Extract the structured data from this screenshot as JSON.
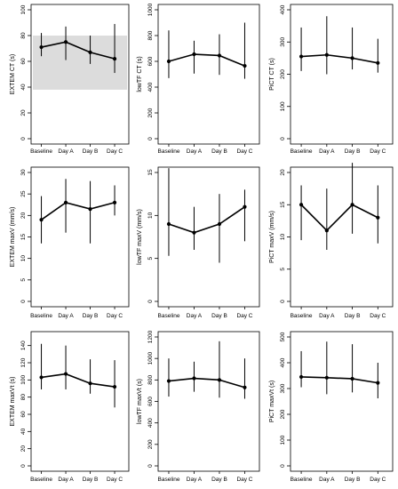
{
  "figure": {
    "categories": [
      "Baseline",
      "Day A",
      "Day B",
      "Day C"
    ]
  },
  "chart_data": [
    {
      "type": "line",
      "ylabel": "EXTEM CT (s)",
      "ylim": [
        0,
        100
      ],
      "yticks": [
        0,
        20,
        40,
        60,
        80,
        100
      ],
      "reference_band": [
        38,
        80
      ],
      "categories": [
        "Baseline",
        "Day A",
        "Day B",
        "Day C"
      ],
      "values": [
        71,
        75,
        67,
        62
      ],
      "error_low": [
        64,
        61,
        58,
        51
      ],
      "error_high": [
        82,
        87,
        80,
        89
      ]
    },
    {
      "type": "line",
      "ylabel": "lowTF CT (s)",
      "ylim": [
        0,
        1000
      ],
      "yticks": [
        0,
        200,
        400,
        600,
        800,
        1000
      ],
      "categories": [
        "Baseline",
        "Day A",
        "Day B",
        "Day C"
      ],
      "values": [
        600,
        655,
        645,
        565
      ],
      "error_low": [
        470,
        505,
        495,
        465
      ],
      "error_high": [
        840,
        760,
        810,
        900
      ]
    },
    {
      "type": "line",
      "ylabel": "PiCT CT (s)",
      "ylim": [
        0,
        400
      ],
      "yticks": [
        0,
        100,
        200,
        300,
        400
      ],
      "categories": [
        "Baseline",
        "Day A",
        "Day B",
        "Day C"
      ],
      "values": [
        255,
        260,
        250,
        235
      ],
      "error_low": [
        210,
        200,
        215,
        205
      ],
      "error_high": [
        345,
        380,
        345,
        310
      ]
    },
    {
      "type": "line",
      "ylabel": "EXTEM maxV (mm/s)",
      "ylim": [
        0,
        30
      ],
      "yticks": [
        0,
        5,
        10,
        15,
        20,
        25,
        30
      ],
      "categories": [
        "Baseline",
        "Day A",
        "Day B",
        "Day C"
      ],
      "values": [
        19,
        23,
        21.5,
        23
      ],
      "error_low": [
        13.5,
        16,
        13.5,
        20
      ],
      "error_high": [
        24.5,
        28.5,
        28,
        27
      ]
    },
    {
      "type": "line",
      "ylabel": "lowTF maxV (mm/s)",
      "ylim": [
        0,
        15
      ],
      "yticks": [
        0,
        5,
        10,
        15
      ],
      "categories": [
        "Baseline",
        "Day A",
        "Day B",
        "Day C"
      ],
      "values": [
        9,
        8,
        9,
        11
      ],
      "error_low": [
        5.3,
        6,
        4.5,
        7
      ],
      "error_high": [
        15.5,
        11,
        12.5,
        13
      ]
    },
    {
      "type": "line",
      "ylabel": "PiCT maxV (mm/s)",
      "ylim": [
        0,
        20
      ],
      "yticks": [
        0,
        5,
        10,
        15,
        20
      ],
      "categories": [
        "Baseline",
        "Day A",
        "Day B",
        "Day C"
      ],
      "values": [
        15,
        11,
        15,
        13
      ],
      "error_low": [
        9.5,
        8,
        10.5,
        9
      ],
      "error_high": [
        18,
        17.5,
        21.5,
        18
      ]
    },
    {
      "type": "line",
      "ylabel": "EXTEM maxVt (s)",
      "ylim": [
        0,
        150
      ],
      "yticks": [
        0,
        20,
        40,
        60,
        80,
        100,
        120,
        140
      ],
      "categories": [
        "Baseline",
        "Day A",
        "Day B",
        "Day C"
      ],
      "values": [
        103,
        107,
        96,
        92
      ],
      "error_low": [
        89,
        89,
        84,
        68
      ],
      "error_high": [
        142,
        140,
        124,
        123
      ]
    },
    {
      "type": "line",
      "ylabel": "lowTF maxVt (s)",
      "ylim": [
        0,
        1200
      ],
      "yticks": [
        0,
        200,
        400,
        600,
        800,
        1000,
        1200
      ],
      "categories": [
        "Baseline",
        "Day A",
        "Day B",
        "Day C"
      ],
      "values": [
        790,
        815,
        800,
        730
      ],
      "error_low": [
        645,
        690,
        635,
        625
      ],
      "error_high": [
        1000,
        970,
        1160,
        1000
      ]
    },
    {
      "type": "line",
      "ylabel": "PiCT maxVt (s)",
      "ylim": [
        0,
        500
      ],
      "yticks": [
        0,
        100,
        200,
        300,
        400,
        500
      ],
      "categories": [
        "Baseline",
        "Day A",
        "Day B",
        "Day C"
      ],
      "values": [
        345,
        342,
        338,
        322
      ],
      "error_low": [
        305,
        278,
        285,
        262
      ],
      "error_high": [
        445,
        482,
        472,
        400
      ]
    }
  ]
}
